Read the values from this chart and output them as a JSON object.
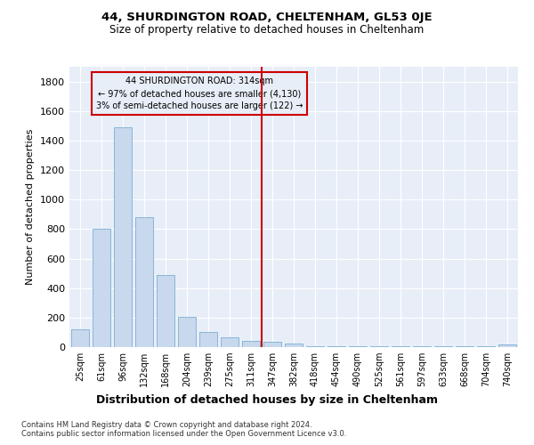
{
  "title1": "44, SHURDINGTON ROAD, CHELTENHAM, GL53 0JE",
  "title2": "Size of property relative to detached houses in Cheltenham",
  "xlabel": "Distribution of detached houses by size in Cheltenham",
  "ylabel": "Number of detached properties",
  "categories": [
    "25sqm",
    "61sqm",
    "96sqm",
    "132sqm",
    "168sqm",
    "204sqm",
    "239sqm",
    "275sqm",
    "311sqm",
    "347sqm",
    "382sqm",
    "418sqm",
    "454sqm",
    "490sqm",
    "525sqm",
    "561sqm",
    "597sqm",
    "633sqm",
    "668sqm",
    "704sqm",
    "740sqm"
  ],
  "bar_heights": [
    120,
    800,
    1490,
    880,
    490,
    205,
    105,
    65,
    40,
    35,
    25,
    5,
    5,
    5,
    5,
    5,
    5,
    5,
    5,
    5,
    18
  ],
  "bar_color": "#c8d8ed",
  "bar_edge_color": "#7bafd4",
  "vline_color": "#cc0000",
  "annotation_title": "44 SHURDINGTON ROAD: 314sqm",
  "annotation_line1": "← 97% of detached houses are smaller (4,130)",
  "annotation_line2": "3% of semi-detached houses are larger (122) →",
  "annotation_box_color": "#cc0000",
  "footer1": "Contains HM Land Registry data © Crown copyright and database right 2024.",
  "footer2": "Contains public sector information licensed under the Open Government Licence v3.0.",
  "ylim": [
    0,
    1900
  ],
  "yticks": [
    0,
    200,
    400,
    600,
    800,
    1000,
    1200,
    1400,
    1600,
    1800
  ],
  "background_color": "#ffffff",
  "plot_bg_color": "#e8eef8",
  "grid_color": "#ffffff",
  "bar_width": 0.85,
  "vline_bin_index": 8
}
